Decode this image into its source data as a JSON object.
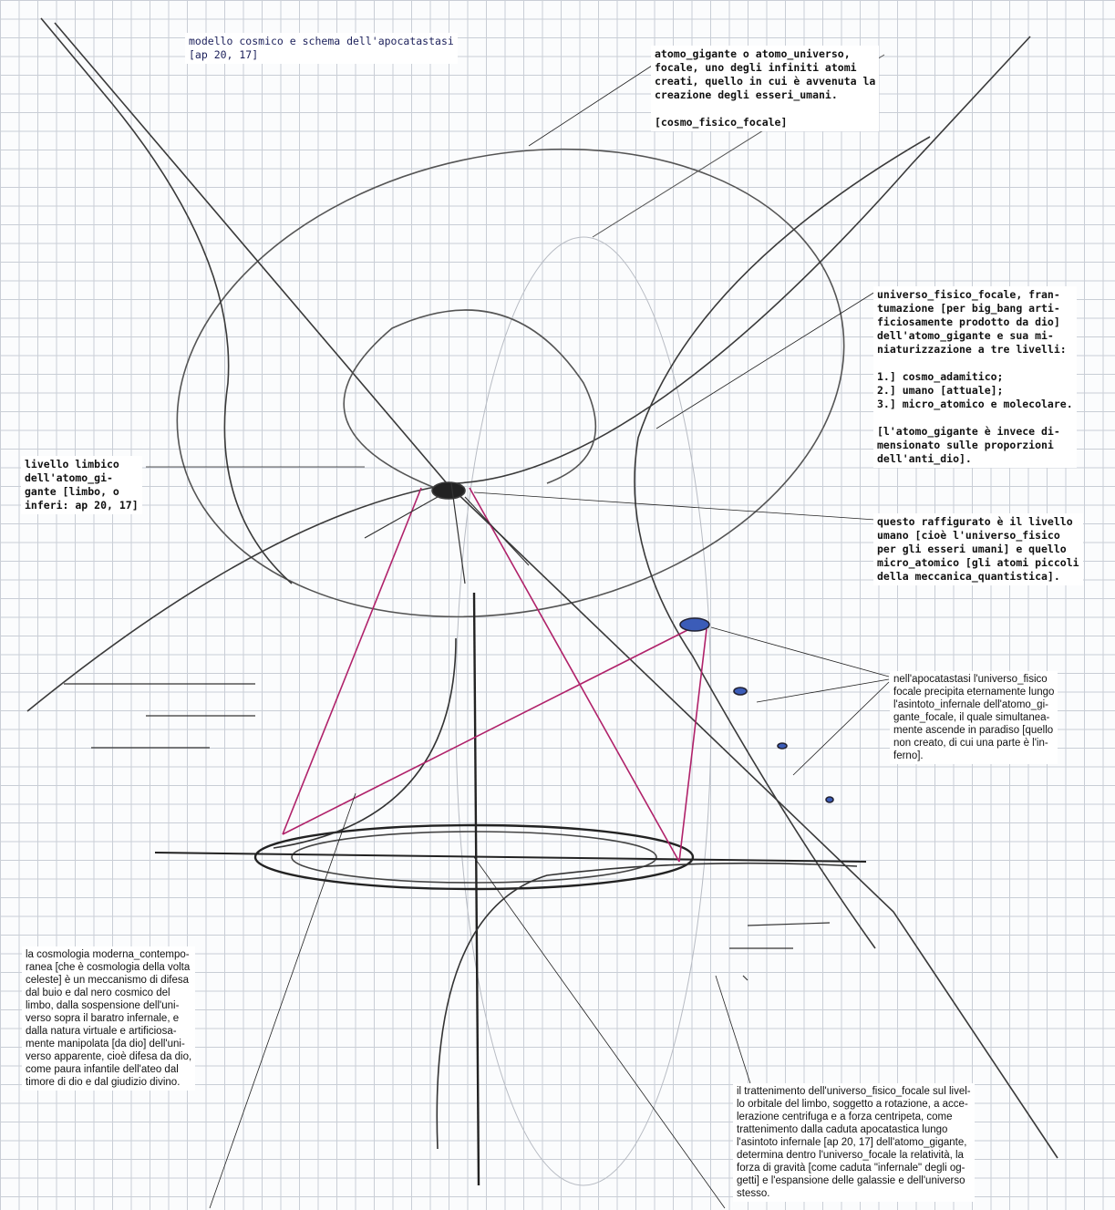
{
  "title": {
    "lines": [
      "modello cosmico e schema dell'apocatastasi",
      "[ap 20, 17]"
    ]
  },
  "annotations": [
    {
      "paragraphs": [
        [
          "atomo_gigante o atomo_universo,",
          "focale, uno degli infiniti atomi",
          "creati, quello in cui è avvenuta la",
          "creazione degli esseri_umani."
        ],
        [
          "[cosmo_fisico_focale]"
        ]
      ]
    },
    {
      "paragraphs": [
        [
          "universo_fisico_focale, fran-",
          "tumazione [per big_bang arti-",
          "ficiosamente prodotto da dio]",
          "dell'atomo_gigante e sua mi-",
          "niaturizzazione a tre livelli:"
        ],
        [
          "1.] cosmo_adamitico;",
          "2.] umano [attuale];",
          "3.] micro_atomico e molecolare."
        ],
        [
          "[l'atomo_gigante è invece di-",
          "mensionato sulle proporzioni",
          "dell'anti_dio]."
        ]
      ]
    },
    {
      "paragraphs": [
        [
          "livello limbico",
          "dell'atomo_gi-",
          "gante [limbo, o",
          "inferi: ap 20, 17]"
        ]
      ]
    },
    {
      "paragraphs": [
        [
          "questo raffigurato è il livello",
          "umano [cioè l'universo_fisico",
          "per gli esseri umani] e quello",
          "micro_atomico [gli atomi piccoli",
          "della meccanica_quantistica]."
        ]
      ]
    },
    {
      "paragraphs": [
        [
          "nell'apocatastasi l'universo_fisico",
          "focale precipita eternamente lungo",
          "l'asintoto_infernale dell'atomo_gi-",
          "gante_focale, il quale simultanea-",
          "mente ascende in paradiso [quello",
          "non creato, di cui una parte è l'in-",
          "ferno]."
        ]
      ]
    },
    {
      "paragraphs": [
        [
          "la cosmologia moderna_contempo-",
          "ranea [che è cosmologia della volta",
          "celeste] è un meccanismo di difesa",
          "dal buio e dal nero cosmico del",
          "limbo, dalla sospensione dell'uni-",
          "verso sopra il baratro infernale, e",
          "dalla natura virtuale e artificiosa-",
          "mente manipolata [da dio] dell'uni-",
          "verso apparente, cioè difesa da dio,",
          "come paura infantile dell'ateo dal",
          "timore di dio e dal giudizio divino."
        ]
      ]
    },
    {
      "paragraphs": [
        [
          "il trattenimento dell'universo_fisico_focale sul livel-",
          "lo orbitale del limbo, soggetto a rotazione, a acce-",
          "lerazione centrifuga e a forza centripeta, come",
          "trattenimento dalla caduta apocatastica lungo",
          "l'asintoto infernale [ap 20, 17] dell'atomo_gigante,",
          "determina dentro l'universo_focale la relatività, la",
          "forza di gravità [come caduta \"infernale\" degli og-",
          "getti] e l'espansione delle galassie e dell'universo",
          "stesso."
        ]
      ]
    }
  ]
}
